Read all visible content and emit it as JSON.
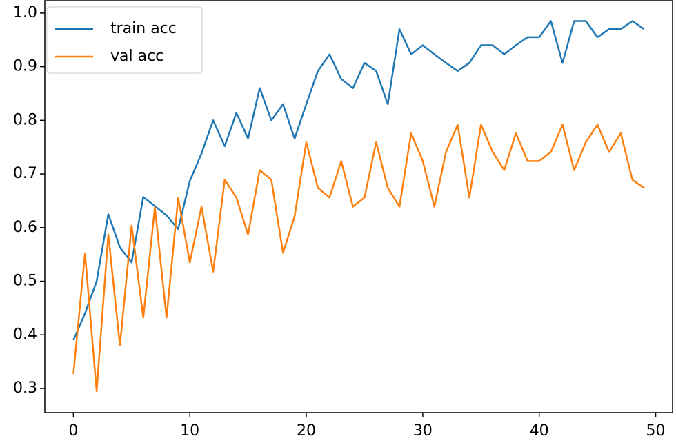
{
  "chart_data": {
    "type": "line",
    "x": [
      0,
      1,
      2,
      3,
      4,
      5,
      6,
      7,
      8,
      9,
      10,
      11,
      12,
      13,
      14,
      15,
      16,
      17,
      18,
      19,
      20,
      21,
      22,
      23,
      24,
      25,
      26,
      27,
      28,
      29,
      30,
      31,
      32,
      33,
      34,
      35,
      36,
      37,
      38,
      39,
      40,
      41,
      42,
      43,
      44,
      45,
      46,
      47,
      48,
      49
    ],
    "series": [
      {
        "name": "train acc",
        "color": "#1f77b4",
        "values": [
          0.39,
          0.44,
          0.5,
          0.625,
          0.563,
          0.535,
          0.657,
          0.64,
          0.623,
          0.597,
          0.687,
          0.738,
          0.8,
          0.752,
          0.814,
          0.766,
          0.86,
          0.8,
          0.83,
          0.766,
          0.83,
          0.892,
          0.923,
          0.877,
          0.86,
          0.907,
          0.892,
          0.83,
          0.97,
          0.923,
          0.94,
          0.923,
          0.907,
          0.892,
          0.907,
          0.94,
          0.94,
          0.923,
          0.94,
          0.955,
          0.955,
          0.985,
          0.907,
          0.985,
          0.985,
          0.955,
          0.97,
          0.97,
          0.985,
          0.97
        ]
      },
      {
        "name": "val acc",
        "color": "#ff7f0e",
        "values": [
          0.327,
          0.552,
          0.295,
          0.587,
          0.38,
          0.604,
          0.432,
          0.638,
          0.432,
          0.655,
          0.535,
          0.639,
          0.518,
          0.689,
          0.656,
          0.587,
          0.707,
          0.689,
          0.553,
          0.621,
          0.759,
          0.674,
          0.656,
          0.724,
          0.639,
          0.656,
          0.759,
          0.674,
          0.639,
          0.776,
          0.724,
          0.639,
          0.741,
          0.792,
          0.656,
          0.792,
          0.741,
          0.707,
          0.776,
          0.724,
          0.724,
          0.741,
          0.792,
          0.707,
          0.759,
          0.792,
          0.741,
          0.776,
          0.689,
          0.674
        ]
      }
    ],
    "xlim": [
      -2.45,
      51.45
    ],
    "xticks": [
      0,
      10,
      20,
      30,
      40,
      50
    ],
    "ylim": [
      0.255,
      1.023
    ],
    "yticks": [
      0.3,
      0.4,
      0.5,
      0.6,
      0.7,
      0.8,
      0.9,
      {
        "value": 1.0,
        "label": "1.0"
      }
    ],
    "legend": "upper left",
    "grid": false
  }
}
